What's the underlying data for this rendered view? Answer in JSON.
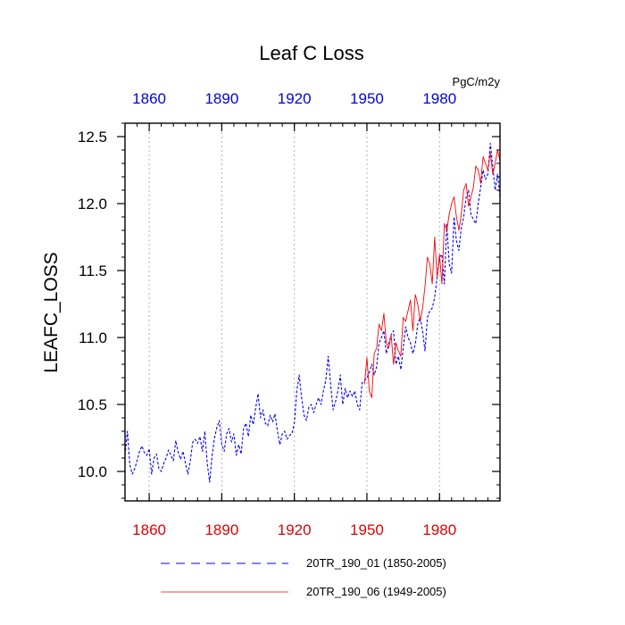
{
  "chart_data": {
    "type": "line",
    "title": "Leaf C Loss",
    "units": "PgC/m2y",
    "xlabel": "",
    "ylabel": "LEAFC_LOSS",
    "xlim": [
      1850,
      2005
    ],
    "ylim": [
      9.78,
      12.6
    ],
    "yticks": [
      10.0,
      10.5,
      11.0,
      11.5,
      12.0,
      12.5
    ],
    "ytick_labels": [
      "10.0",
      "10.5",
      "11.0",
      "11.5",
      "12.0",
      "12.5"
    ],
    "xticks": [
      1860,
      1890,
      1920,
      1950,
      1980
    ],
    "xtick_labels": [
      "1860",
      "1890",
      "1920",
      "1950",
      "1980"
    ],
    "top_axis_color": "#0000e0",
    "bottom_axis_color": "#e00000",
    "grid": "vertical dotted at x ticks",
    "legend_position": "bottom-center",
    "series": [
      {
        "name": "20TR_190_01 (1850-2005)",
        "color": "#0000ff",
        "dash": "dashed",
        "x_start": 1850,
        "values": [
          10.12,
          10.3,
          10.05,
          9.98,
          10.02,
          10.08,
          10.15,
          10.19,
          10.14,
          10.12,
          10.17,
          9.98,
          10.1,
          10.13,
          10.02,
          10.0,
          10.06,
          10.1,
          10.16,
          10.12,
          10.08,
          10.23,
          10.14,
          10.09,
          10.15,
          10.06,
          9.98,
          10.08,
          10.22,
          10.24,
          10.21,
          10.26,
          10.15,
          10.3,
          10.06,
          9.92,
          10.12,
          10.25,
          10.33,
          10.38,
          10.2,
          10.15,
          10.28,
          10.32,
          10.22,
          10.28,
          10.12,
          10.2,
          10.13,
          10.32,
          10.36,
          10.26,
          10.42,
          10.35,
          10.47,
          10.58,
          10.4,
          10.46,
          10.36,
          10.34,
          10.42,
          10.37,
          10.43,
          10.3,
          10.2,
          10.28,
          10.3,
          10.24,
          10.27,
          10.28,
          10.36,
          10.6,
          10.72,
          10.55,
          10.42,
          10.38,
          10.48,
          10.5,
          10.44,
          10.5,
          10.55,
          10.5,
          10.6,
          10.68,
          10.86,
          10.65,
          10.46,
          10.52,
          10.6,
          10.72,
          10.5,
          10.62,
          10.55,
          10.6,
          10.56,
          10.6,
          10.5,
          10.46,
          10.66,
          10.68,
          10.7,
          10.74,
          10.8,
          10.72,
          10.78,
          10.96,
          11.0,
          11.05,
          10.88,
          10.95,
          11.02,
          11.05,
          10.8,
          10.86,
          10.76,
          10.92,
          11.08,
          11.0,
          10.96,
          10.88,
          10.95,
          11.1,
          11.15,
          11.05,
          10.9,
          11.15,
          11.2,
          11.22,
          11.3,
          11.45,
          11.6,
          11.62,
          11.4,
          11.85,
          11.55,
          11.48,
          11.9,
          11.72,
          11.65,
          11.82,
          11.9,
          12.05,
          12.1,
          11.92,
          11.88,
          11.85,
          12.0,
          12.12,
          12.25,
          12.18,
          12.22,
          12.45,
          12.28,
          12.1,
          12.22,
          12.05
        ]
      },
      {
        "name": "20TR_190_06 (1949-2005)",
        "color": "#ff0000",
        "dash": "solid",
        "x_start": 1949,
        "values": [
          10.65,
          10.85,
          10.6,
          10.55,
          10.88,
          10.92,
          11.1,
          11.05,
          11.18,
          10.96,
          10.92,
          11.02,
          10.8,
          10.96,
          10.9,
          10.86,
          11.15,
          11.12,
          11.2,
          11.28,
          11.05,
          11.32,
          11.25,
          11.12,
          11.22,
          11.38,
          11.6,
          11.55,
          11.4,
          11.75,
          11.45,
          11.62,
          11.4,
          11.85,
          11.8,
          11.92,
          12.0,
          12.05,
          11.9,
          11.8,
          11.92,
          12.1,
          12.15,
          11.98,
          12.05,
          12.12,
          12.28,
          12.25,
          12.15,
          12.35,
          12.3,
          12.25,
          12.38,
          12.22,
          12.3,
          12.4,
          12.32
        ]
      }
    ]
  }
}
